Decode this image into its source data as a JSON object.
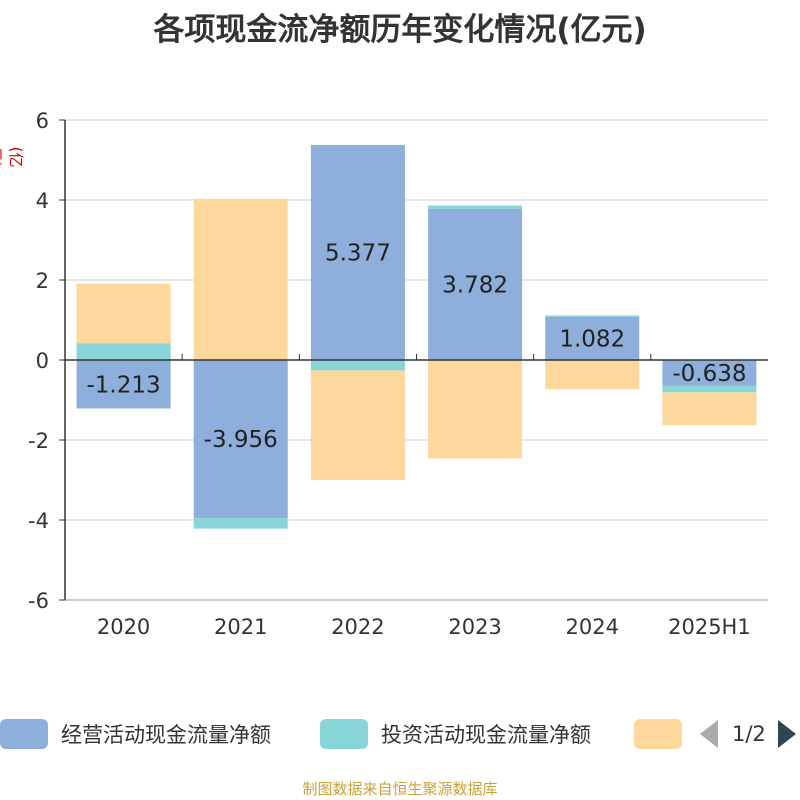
{
  "chart_data": {
    "type": "bar",
    "stacked": true,
    "title": "各项现金流净额历年变化情况(亿元)",
    "ylabel": "(亿元)",
    "categories": [
      "2020",
      "2021",
      "2022",
      "2023",
      "2024",
      "2025H1"
    ],
    "ylim": [
      -6,
      6
    ],
    "yticks": [
      6,
      4,
      2,
      0,
      -2,
      -4,
      -6
    ],
    "grid": true,
    "series": [
      {
        "name": "经营活动现金流量净额",
        "color": "#8eaedb",
        "values": [
          -1.213,
          -3.956,
          5.377,
          3.782,
          1.082,
          -0.638
        ],
        "labels": [
          "-1.213",
          "-3.956",
          "5.377",
          "3.782",
          "1.082",
          "-0.638"
        ]
      },
      {
        "name": "投资活动现金流量净额",
        "color": "#87d5d6",
        "values": [
          0.42,
          -0.26,
          -0.26,
          0.08,
          0.03,
          -0.17
        ]
      },
      {
        "name": "",
        "color": "#fdd79b",
        "values": [
          1.49,
          4.03,
          -2.74,
          -2.46,
          -0.73,
          -0.82
        ]
      }
    ],
    "legend_position": "bottom"
  },
  "legend": {
    "page_text": "1/2"
  },
  "source_note": "制图数据来自恒生聚源数据库"
}
